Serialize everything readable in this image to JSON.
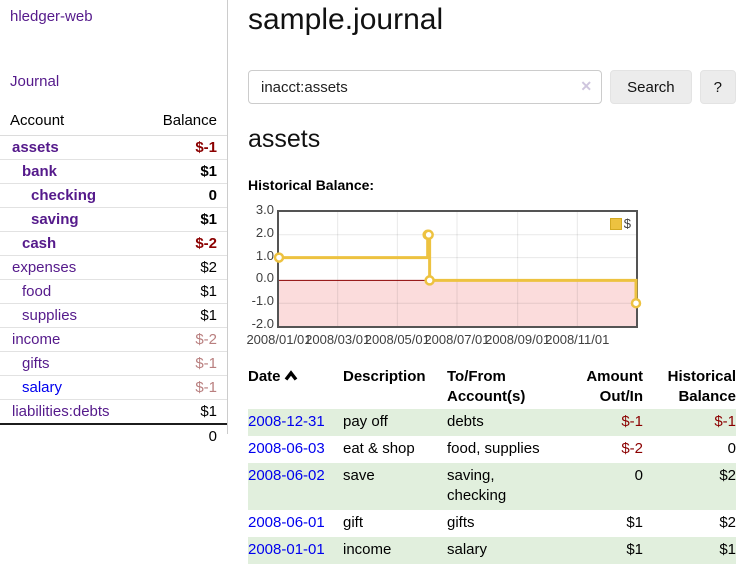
{
  "sidebar": {
    "app_title": "hledger-web",
    "journal_link": "Journal",
    "account_header": "Account",
    "balance_header": "Balance",
    "rows": [
      {
        "account": "assets",
        "balance": "$-1",
        "level": 1
      },
      {
        "account": "bank",
        "balance": "$1",
        "level": 2
      },
      {
        "account": "checking",
        "balance": "0",
        "level": 3
      },
      {
        "account": "saving",
        "balance": "$1",
        "level": 3
      },
      {
        "account": "cash",
        "balance": "$-2",
        "level": 2
      },
      {
        "account": "expenses",
        "balance": "$2",
        "level": 1
      },
      {
        "account": "food",
        "balance": "$1",
        "level": 2
      },
      {
        "account": "supplies",
        "balance": "$1",
        "level": 2
      },
      {
        "account": "income",
        "balance": "$-2",
        "level": 1
      },
      {
        "account": "gifts",
        "balance": "$-1",
        "level": 2
      },
      {
        "account": "salary",
        "balance": "$-1",
        "level": 2
      },
      {
        "account": "liabilities:debts",
        "balance": "$1",
        "level": 1
      }
    ],
    "total": "0"
  },
  "main": {
    "title": "sample.journal",
    "search": {
      "value": "inacct:assets",
      "clear_icon": "✕",
      "search_button": "Search",
      "help_button": "?"
    },
    "account_heading": "assets",
    "chart_label": "Historical Balance:",
    "register": {
      "headers": {
        "date": "Date",
        "description": "Description",
        "accounts": "To/From Account(s)",
        "amount": "Amount Out/In",
        "balance": "Historical Balance"
      },
      "sort_icon": "chevron-up",
      "rows": [
        {
          "date": "2008-12-31",
          "description": "pay off",
          "accounts": "debts",
          "amount": "$-1",
          "balance": "$-1"
        },
        {
          "date": "2008-06-03",
          "description": "eat & shop",
          "accounts": "food, supplies",
          "amount": "$-2",
          "balance": "0"
        },
        {
          "date": "2008-06-02",
          "description": "save",
          "accounts": "saving, checking",
          "amount": "0",
          "balance": "$2"
        },
        {
          "date": "2008-06-01",
          "description": "gift",
          "accounts": "gifts",
          "amount": "$1",
          "balance": "$2"
        },
        {
          "date": "2008-01-01",
          "description": "income",
          "accounts": "salary",
          "amount": "$1",
          "balance": "$1"
        }
      ]
    }
  },
  "chart_data": {
    "type": "line",
    "title": "Historical Balance",
    "series": [
      {
        "name": "$",
        "color": "#edc240",
        "steps": true,
        "points": [
          [
            "2008-01-01",
            1
          ],
          [
            "2008-06-01",
            2
          ],
          [
            "2008-06-02",
            2
          ],
          [
            "2008-06-03",
            0
          ],
          [
            "2008-12-31",
            -1
          ]
        ]
      }
    ],
    "xrange": [
      "2008-01-01",
      "2008-12-31"
    ],
    "ylim": [
      -2,
      3
    ],
    "ytick_values": [
      3,
      2,
      1,
      0,
      -1,
      -2
    ],
    "ytick_labels": [
      "3.0",
      "2.0",
      "1.0",
      "0.0",
      "-1.0",
      "-2.0"
    ],
    "xticks": [
      {
        "label": "2008/01/01",
        "date": "2008-01-01"
      },
      {
        "label": "2008/03/01",
        "date": "2008-03-01"
      },
      {
        "label": "2008/05/01",
        "date": "2008-05-01"
      },
      {
        "label": "2008/07/01",
        "date": "2008-07-01"
      },
      {
        "label": "2008/09/01",
        "date": "2008-09-01"
      },
      {
        "label": "2008/11/01",
        "date": "2008-11-01"
      }
    ],
    "grid": true,
    "negative_region_color": "#fbdcdc",
    "zero_line_color": "#8b0000",
    "gridline_color": "rgba(0,0,0,0.09)",
    "legend": {
      "label": "$",
      "swatch_color": "#edc240",
      "position": "top-right"
    }
  },
  "colors": {
    "accent_purple": "#551a8b",
    "link_blue": "#0000ee",
    "negative_red": "#8b0000",
    "dim_negative": "#b97f7f",
    "row_green": "#e1efdd",
    "series_yellow": "#edc240"
  }
}
